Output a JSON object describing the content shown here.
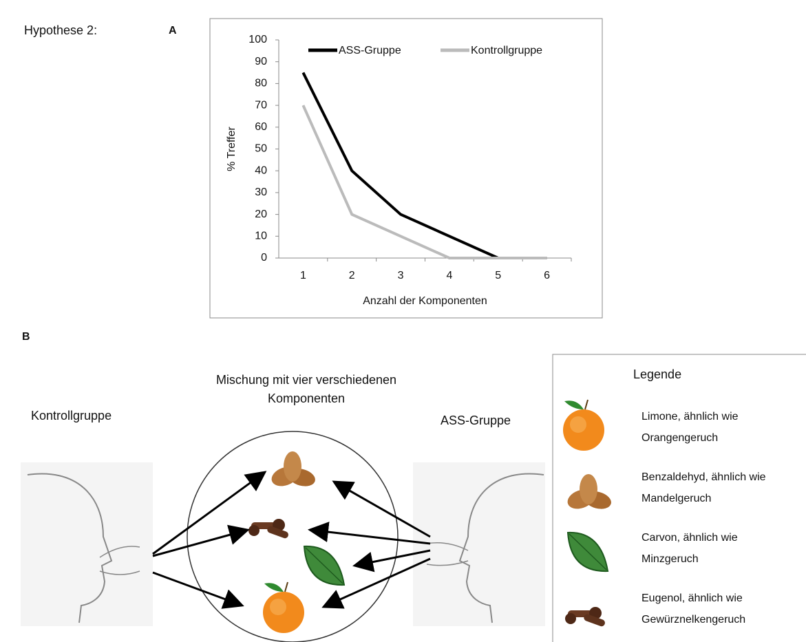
{
  "figure": {
    "hypothesis": "Hypothese 2:",
    "panel_a": "A",
    "panel_b": "B"
  },
  "chart_data": {
    "type": "line",
    "x_label": "Anzahl der Komponenten",
    "y_label": "% Treffer",
    "categories": [
      "1",
      "2",
      "3",
      "4",
      "5",
      "6"
    ],
    "series": [
      {
        "name": "ASS-Gruppe",
        "color": "#000000",
        "values": [
          85,
          40,
          20,
          10,
          0,
          0
        ]
      },
      {
        "name": "Kontrollgruppe",
        "color": "#bbbbbb",
        "values": [
          70,
          20,
          10,
          0,
          0,
          0
        ]
      }
    ],
    "ylim": [
      0,
      100
    ],
    "yticks": [
      0,
      10,
      20,
      30,
      40,
      50,
      60,
      70,
      80,
      90,
      100
    ],
    "legend": "top",
    "grid": false
  },
  "diagram": {
    "mixture": [
      "Mischung mit vier verschiedenen",
      "Komponenten"
    ],
    "left_group": "Kontrollgruppe",
    "right_group": "ASS-Gruppe",
    "legend_title": "Legende",
    "legend_items": [
      [
        "Limone, ähnlich wie",
        "Orangengeruch"
      ],
      [
        "Benzaldehyd, ähnlich wie",
        "Mandelgeruch"
      ],
      [
        "Carvon, ähnlich wie",
        "Minzgeruch"
      ],
      [
        "Eugenol, ähnlich wie",
        "Gewürznelkengeruch"
      ]
    ]
  }
}
